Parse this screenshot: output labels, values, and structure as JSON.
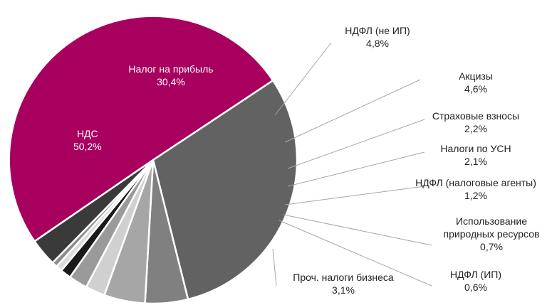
{
  "chart_data": {
    "type": "pie",
    "unit": "%",
    "slices": [
      {
        "label": "НДС",
        "value_text": "50,2%",
        "value": 50.2,
        "color": "#a8005e"
      },
      {
        "label": "Налог на прибыль",
        "value_text": "30,4%",
        "value": 30.4,
        "color": "#626262"
      },
      {
        "label": "НДФЛ (не ИП)",
        "value_text": "4,8%",
        "value": 4.8,
        "color": "#808080"
      },
      {
        "label": "Акцизы",
        "value_text": "4,6%",
        "value": 4.6,
        "color": "#a6a6a6"
      },
      {
        "label": "Страховые взносы",
        "value_text": "2,2%",
        "value": 2.2,
        "color": "#d0d0d0"
      },
      {
        "label": "Налоги по УСН",
        "value_text": "2,1%",
        "value": 2.1,
        "color": "#9a9a9a"
      },
      {
        "label": "НДФЛ (налоговые агенты)",
        "value_text": "1,2%",
        "value": 1.2,
        "color": "#1a1a1a"
      },
      {
        "label": "Использование природных ресурсов",
        "value_text": "0,7%",
        "value": 0.7,
        "color": "#dcdcdc"
      },
      {
        "label": "НДФЛ (ИП)",
        "value_text": "0,6%",
        "value": 0.6,
        "color": "#8c8c8c"
      },
      {
        "label": "Проч. налоги бизнеса",
        "value_text": "3,1%",
        "value": 3.1,
        "color": "#3a3a3a"
      }
    ]
  }
}
